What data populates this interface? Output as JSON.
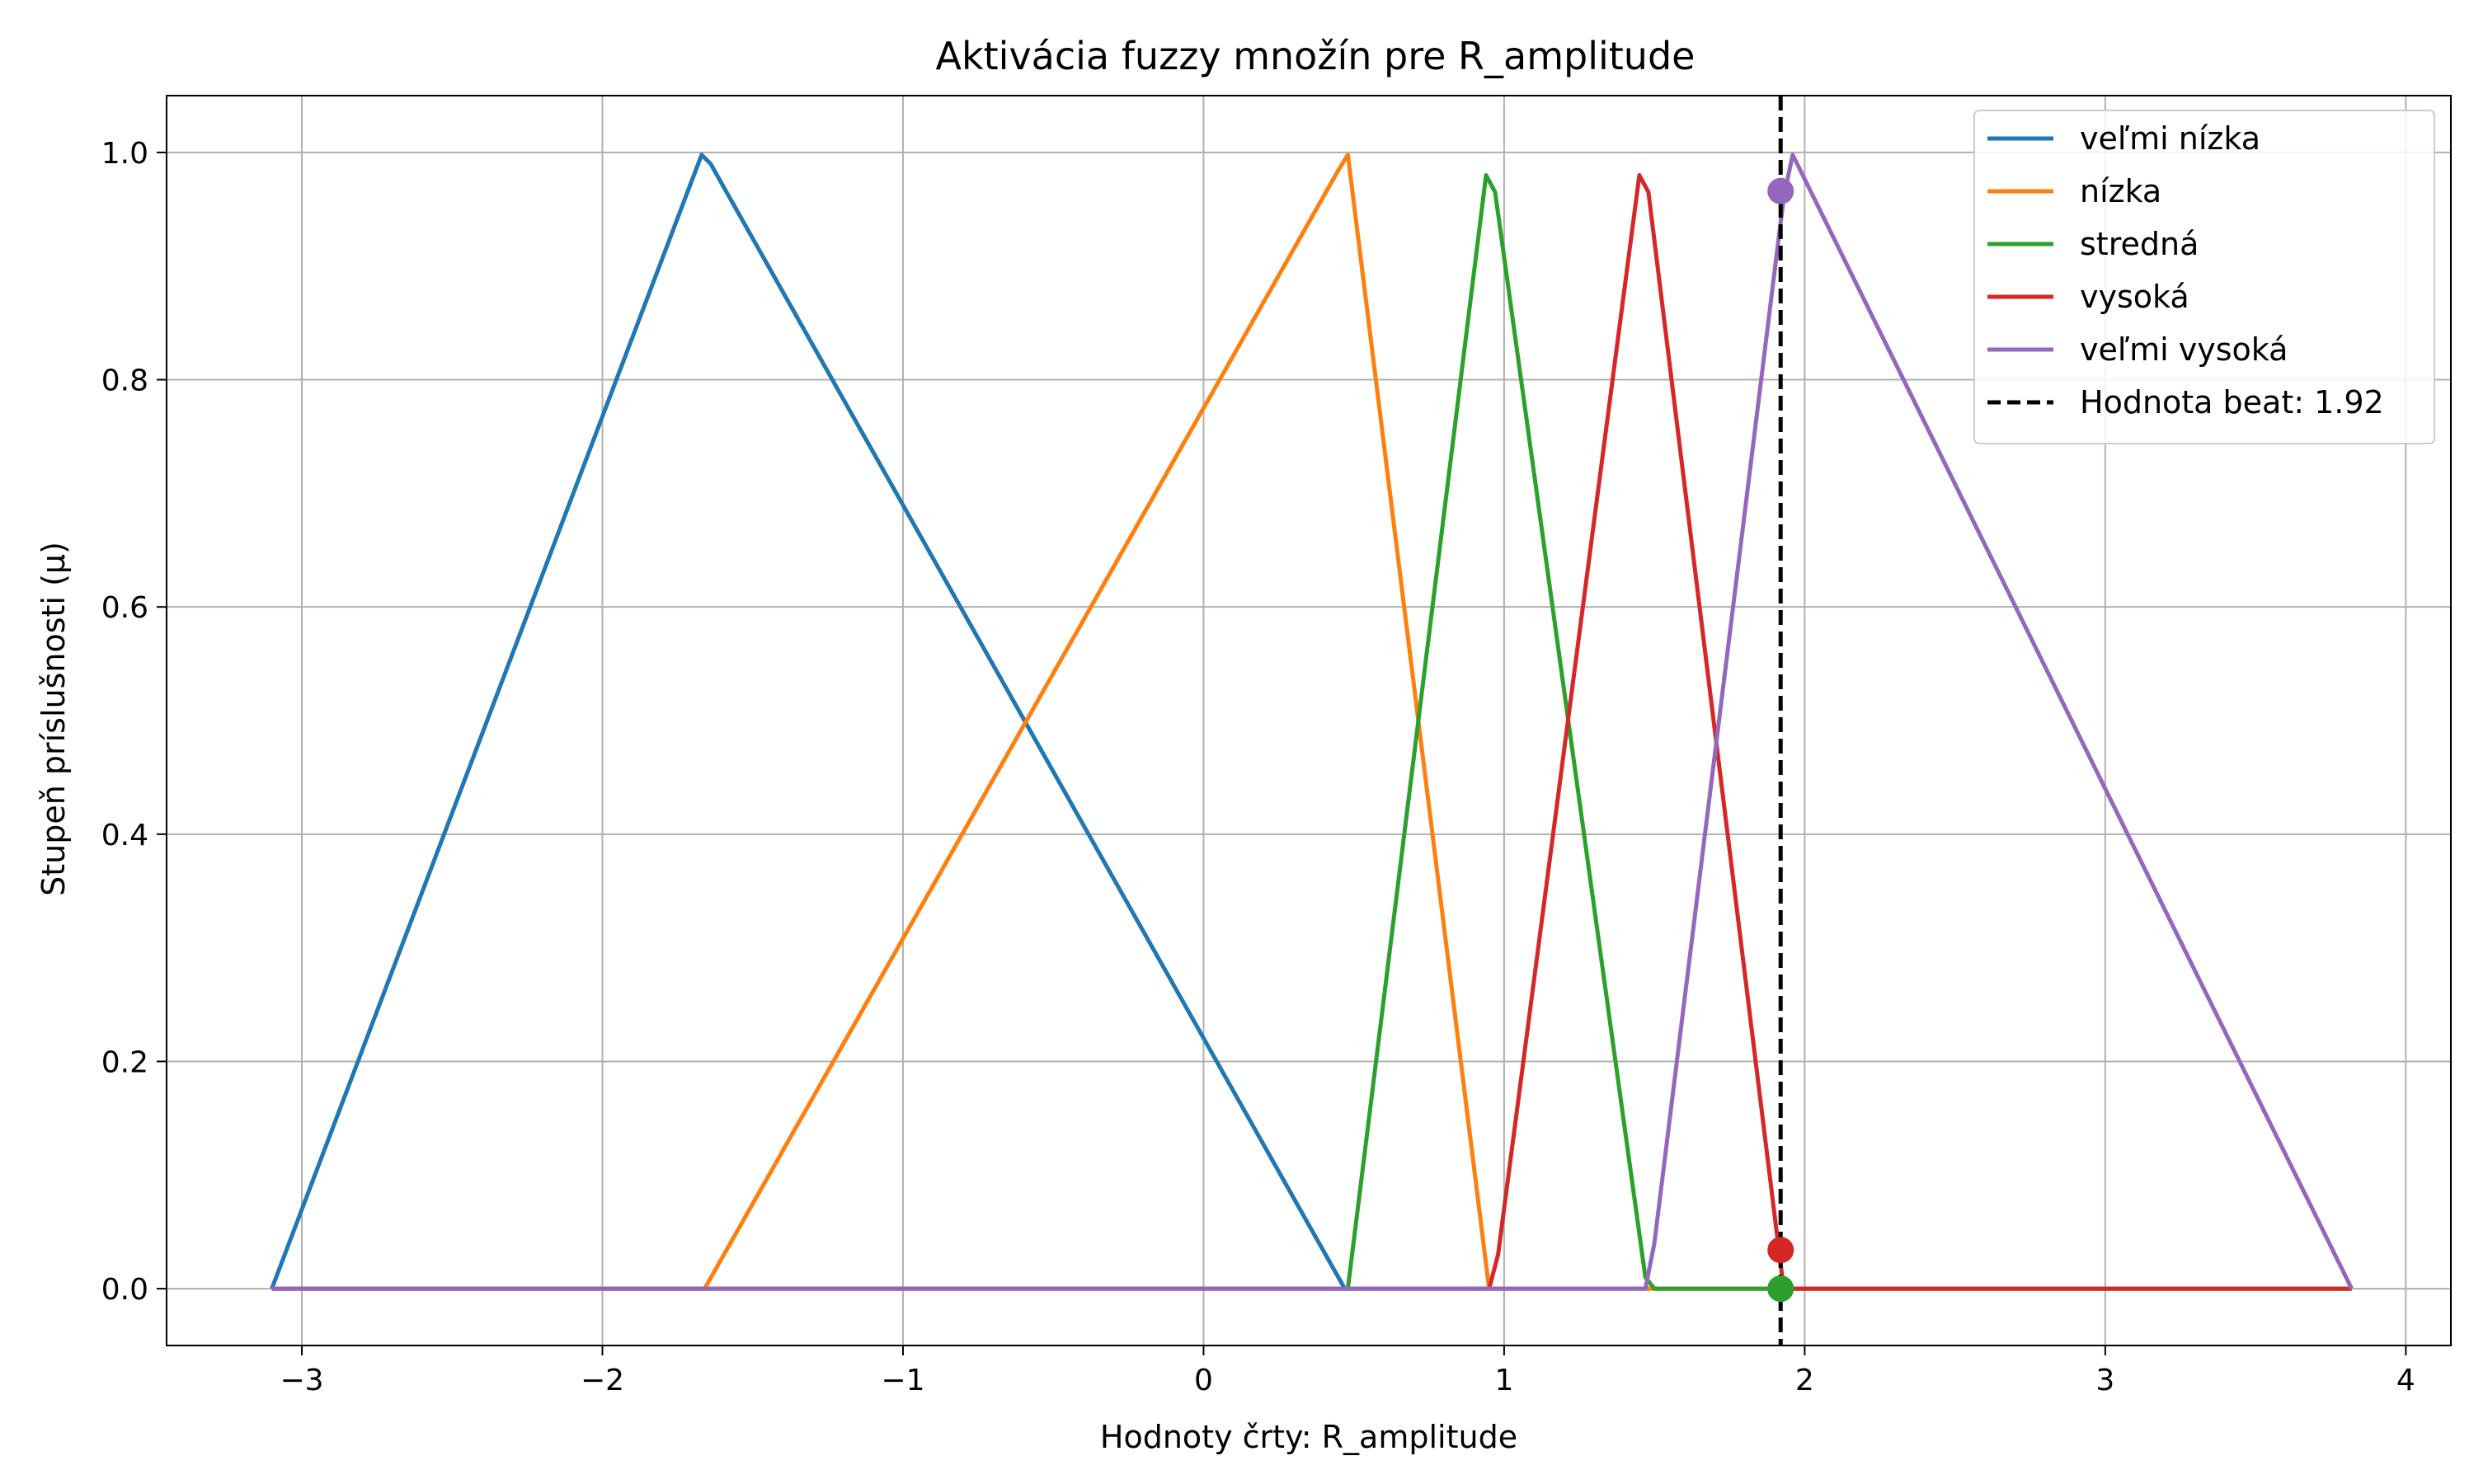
{
  "chart_data": {
    "type": "line",
    "title": "Aktivácia fuzzy množín pre R_amplitude",
    "xlabel": "Hodnoty črty: R_amplitude",
    "ylabel": "Stupeň príslušnosti (μ)",
    "xlim": [
      -3.45,
      4.15
    ],
    "ylim": [
      -0.05,
      1.05
    ],
    "xticks": [
      -3,
      -2,
      -1,
      0,
      1,
      2,
      3,
      4
    ],
    "xtick_labels": [
      "−3",
      "−2",
      "−1",
      "0",
      "1",
      "2",
      "3",
      "4"
    ],
    "yticks": [
      0.0,
      0.2,
      0.4,
      0.6,
      0.8,
      1.0
    ],
    "ytick_labels": [
      "0.0",
      "0.2",
      "0.4",
      "0.6",
      "0.8",
      "1.0"
    ],
    "grid": true,
    "legend_position": "top-right",
    "series": [
      {
        "name": "veľmi nízka",
        "color": "#1f77b4",
        "points": [
          [
            -3.1,
            0.0
          ],
          [
            -1.67,
            0.998
          ],
          [
            -1.64,
            0.99
          ],
          [
            0.47,
            0.0
          ],
          [
            3.82,
            0.0
          ]
        ]
      },
      {
        "name": "nízka",
        "color": "#ff7f0e",
        "points": [
          [
            -3.1,
            0.0
          ],
          [
            -1.66,
            0.0
          ],
          [
            0.45,
            0.985
          ],
          [
            0.48,
            0.998
          ],
          [
            0.95,
            0.0
          ],
          [
            3.82,
            0.0
          ]
        ]
      },
      {
        "name": "stredná",
        "color": "#2ca02c",
        "points": [
          [
            -3.1,
            0.0
          ],
          [
            0.48,
            0.0
          ],
          [
            0.94,
            0.98
          ],
          [
            0.97,
            0.965
          ],
          [
            1.47,
            0.01
          ],
          [
            1.5,
            0.0
          ],
          [
            3.82,
            0.0
          ]
        ]
      },
      {
        "name": "vysoká",
        "color": "#d62728",
        "points": [
          [
            -3.1,
            0.0
          ],
          [
            0.95,
            0.0
          ],
          [
            0.98,
            0.03
          ],
          [
            1.45,
            0.98
          ],
          [
            1.48,
            0.965
          ],
          [
            1.93,
            0.0
          ],
          [
            3.82,
            0.0
          ]
        ]
      },
      {
        "name": "veľmi vysoká",
        "color": "#9467bd",
        "points": [
          [
            -3.1,
            0.0
          ],
          [
            1.47,
            0.0
          ],
          [
            1.5,
            0.04
          ],
          [
            1.93,
            0.96
          ],
          [
            1.96,
            0.998
          ],
          [
            3.82,
            0.0
          ]
        ]
      }
    ],
    "vline": {
      "name": "Hodnota beat: 1.92",
      "x": 1.92,
      "color": "#000000",
      "style": "dashed"
    },
    "markers": [
      {
        "series": "veľmi nízka",
        "x": 1.92,
        "y": 0.0,
        "color": "#1f77b4"
      },
      {
        "series": "nízka",
        "x": 1.92,
        "y": 0.0,
        "color": "#ff7f0e"
      },
      {
        "series": "stredná",
        "x": 1.92,
        "y": 0.0,
        "color": "#2ca02c"
      },
      {
        "series": "vysoká",
        "x": 1.92,
        "y": 0.034,
        "color": "#d62728"
      },
      {
        "series": "veľmi vysoká",
        "x": 1.92,
        "y": 0.966,
        "color": "#9467bd"
      }
    ]
  }
}
